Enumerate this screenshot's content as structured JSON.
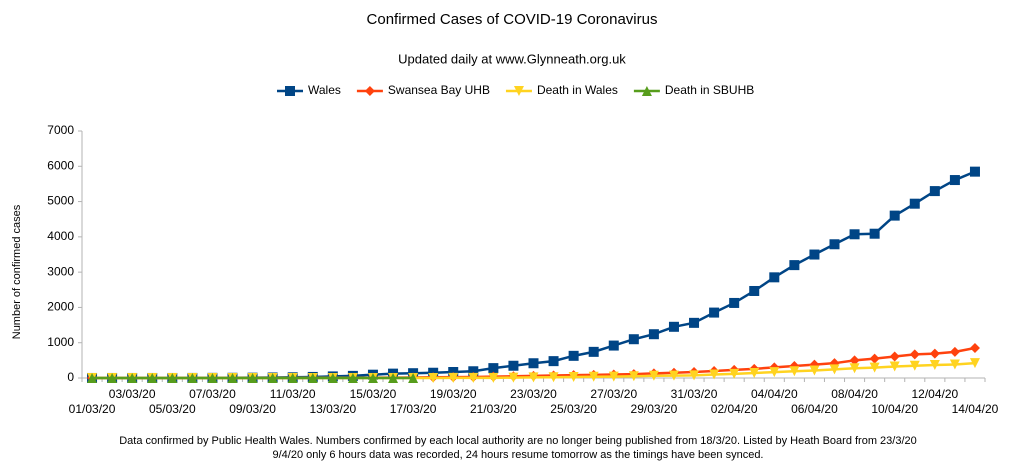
{
  "chart_data": {
    "type": "line",
    "title": "Confirmed Cases of COVID-19 Coronavirus",
    "subtitle": "Updated daily at www.Glynneath.org.uk",
    "y_label": "Number of confirmed cases",
    "footnote": [
      "Data confirmed by Public Health Wales.  Numbers confirmed by each local authority are no longer being published from 18/3/20. Listed by Heath Board from 23/3/20",
      "9/4/20 only 6 hours data was recorded, 24 hours resume tomorrow as the timings have been synced."
    ],
    "categories": [
      "01/03/20",
      null,
      "03/03/20",
      null,
      "05/03/20",
      null,
      "07/03/20",
      null,
      "09/03/20",
      null,
      "11/03/20",
      null,
      "13/03/20",
      null,
      "15/03/20",
      null,
      "17/03/20",
      null,
      "19/03/20",
      null,
      "21/03/20",
      null,
      "23/03/20",
      null,
      "25/03/20",
      null,
      "27/03/20",
      null,
      "29/03/20",
      null,
      "31/03/20",
      null,
      "02/04/20",
      null,
      "04/04/20",
      null,
      "06/04/20",
      null,
      "08/04/20",
      null,
      "10/04/20",
      null,
      "12/04/20",
      null,
      "14/04/20"
    ],
    "series": [
      {
        "name": "Wales",
        "color": "#004586",
        "marker": "square",
        "values": [
          1,
          1,
          1,
          1,
          1,
          2,
          4,
          6,
          9,
          15,
          20,
          30,
          45,
          60,
          94,
          124,
          136,
          149,
          170,
          191,
          280,
          347,
          418,
          478,
          628,
          741,
          919,
          1099,
          1241,
          1451,
          1563,
          1854,
          2127,
          2466,
          2853,
          3199,
          3499,
          3790,
          4073,
          4089,
          4602,
          4940,
          5297,
          5610,
          5848
        ]
      },
      {
        "name": "Swansea Bay UHB",
        "color": "#ff420e",
        "marker": "diamond",
        "values": [
          0,
          0,
          0,
          0,
          0,
          0,
          0,
          0,
          0,
          0,
          1,
          2,
          3,
          5,
          8,
          12,
          15,
          20,
          25,
          30,
          40,
          50,
          60,
          70,
          80,
          90,
          100,
          110,
          130,
          150,
          170,
          200,
          230,
          260,
          300,
          340,
          380,
          420,
          500,
          550,
          610,
          670,
          690,
          740,
          850
        ]
      },
      {
        "name": "Death in Wales",
        "color": "#ffd320",
        "marker": "triangle-down",
        "values": [
          0,
          0,
          0,
          0,
          0,
          0,
          0,
          0,
          0,
          0,
          0,
          0,
          0,
          0,
          0,
          0,
          1,
          1,
          2,
          3,
          5,
          10,
          16,
          22,
          28,
          34,
          38,
          48,
          62,
          69,
          74,
          98,
          116,
          141,
          166,
          193,
          212,
          245,
          276,
          294,
          325,
          347,
          369,
          384,
          420
        ]
      },
      {
        "name": "Death in SBUHB",
        "color": "#579d1c",
        "marker": "triangle-up",
        "values": [
          0,
          0,
          0,
          0,
          0,
          0,
          0,
          0,
          0,
          0,
          0,
          0,
          0,
          0,
          0,
          0,
          0,
          null,
          null,
          null,
          null,
          null,
          null,
          null,
          null,
          null,
          null,
          null,
          null,
          null,
          null,
          null,
          null,
          null,
          null,
          null,
          null,
          null,
          null,
          null,
          null,
          null,
          null,
          null,
          null
        ]
      }
    ],
    "ylim": [
      0,
      7000
    ],
    "yticks": [
      0,
      1000,
      2000,
      3000,
      4000,
      5000,
      6000,
      7000
    ],
    "grid": false,
    "legend": "top"
  }
}
